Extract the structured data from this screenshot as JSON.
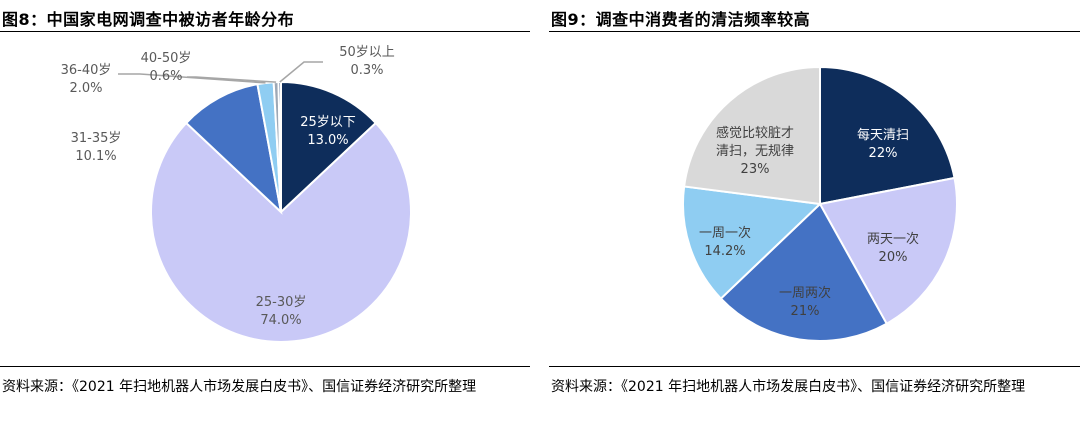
{
  "figures": [
    {
      "title": "图8：中国家电网调查中被访者年龄分布",
      "source": "资料来源：《2021 年扫地机器人市场发展白皮书》、国信证券经济研究所整理"
    },
    {
      "title": "图9：调查中消费者的清洁频率较高",
      "source": "资料来源：《2021 年扫地机器人市场发展白皮书》、国信证券经济研究所整理"
    }
  ],
  "chart_data": [
    {
      "type": "pie",
      "title": "图8：中国家电网调查中被访者年龄分布",
      "slices": [
        {
          "label": "25岁以下",
          "value": 13.0,
          "value_text": "13.0%",
          "color": "#0e2d5b"
        },
        {
          "label": "25-30岁",
          "value": 74.0,
          "value_text": "74.0%",
          "color": "#c9c9f7"
        },
        {
          "label": "31-35岁",
          "value": 10.1,
          "value_text": "10.1%",
          "color": "#4472c4"
        },
        {
          "label": "36-40岁",
          "value": 2.0,
          "value_text": "2.0%",
          "color": "#8fcdf2"
        },
        {
          "label": "40-50岁",
          "value": 0.6,
          "value_text": "0.6%",
          "color": "#9da8b6"
        },
        {
          "label": "50岁以上",
          "value": 0.3,
          "value_text": "0.3%",
          "color": "#2e4a7a"
        }
      ]
    },
    {
      "type": "pie",
      "title": "图9：调查中消费者的清洁频率较高",
      "slices": [
        {
          "label": "每天清扫",
          "value": 22,
          "value_text": "22%",
          "color": "#0e2d5b"
        },
        {
          "label": "两天一次",
          "value": 20,
          "value_text": "20%",
          "color": "#c9c9f7"
        },
        {
          "label": "一周两次",
          "value": 21,
          "value_text": "21%",
          "color": "#4472c4"
        },
        {
          "label": "一周一次",
          "value": 14.2,
          "value_text": "14.2%",
          "color": "#8fcdf2"
        },
        {
          "label": "感觉比较脏才清扫，无规律",
          "value": 23,
          "value_text": "23%",
          "color": "#d9d9d9"
        }
      ]
    }
  ]
}
